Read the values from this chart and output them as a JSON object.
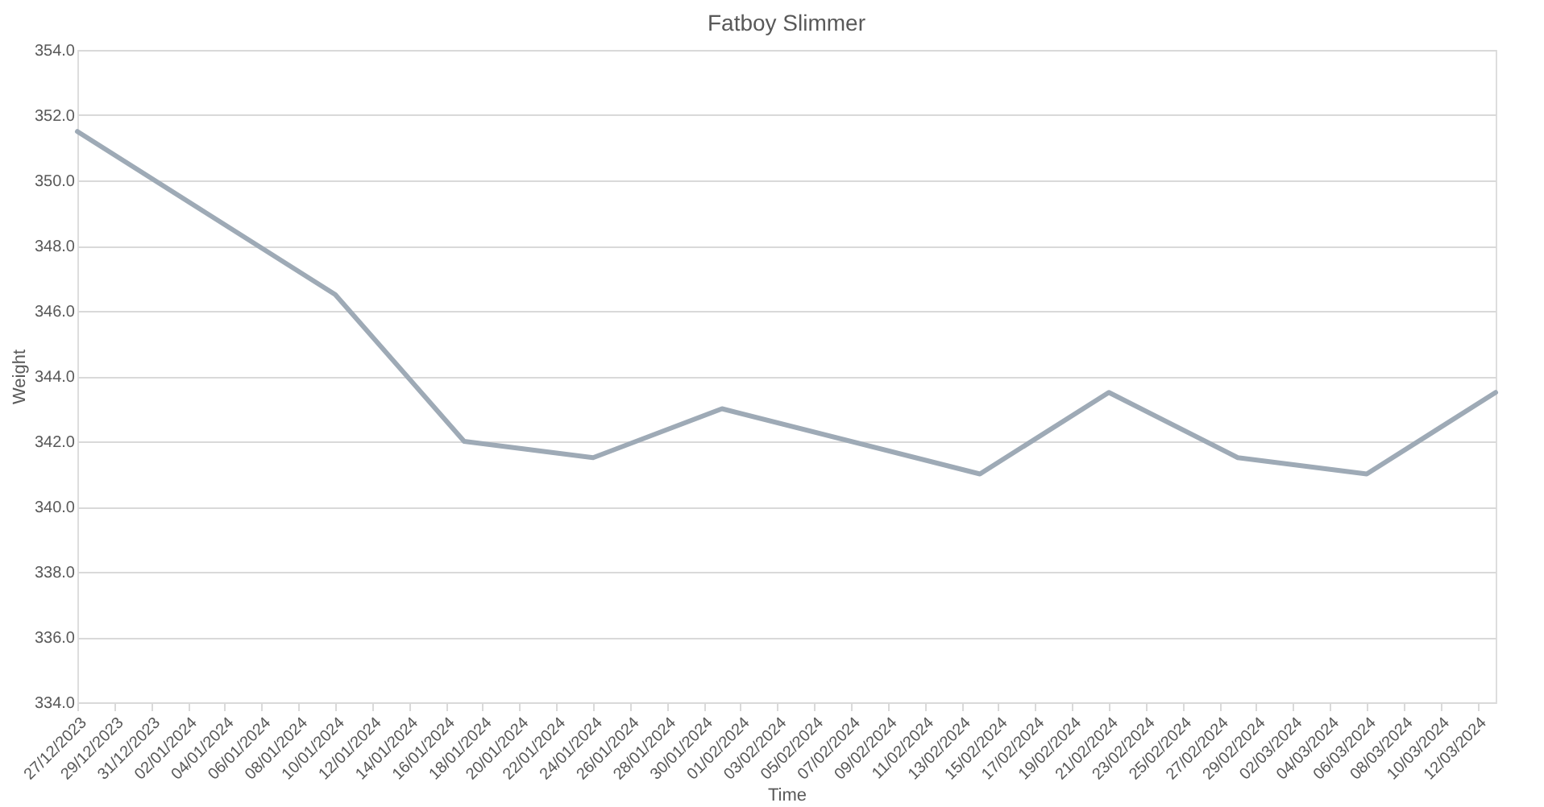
{
  "chart_data": {
    "type": "line",
    "title": "Fatboy Slimmer",
    "xlabel": "Time",
    "ylabel": "Weight",
    "x": [
      "2023-12-27",
      "2024-01-10",
      "2024-01-17",
      "2024-01-24",
      "2024-01-31",
      "2024-02-14",
      "2024-02-21",
      "2024-02-28",
      "2024-03-06",
      "2024-03-13"
    ],
    "series": [
      {
        "color": "#9eaab6",
        "values": [
          351.5,
          346.5,
          342.0,
          341.5,
          343.0,
          341.0,
          343.5,
          341.5,
          341.0,
          343.5
        ]
      }
    ],
    "xlim": [
      "2023-12-27",
      "2024-03-13"
    ],
    "xticks": [
      {
        "value": "2023-12-27",
        "label": "27/12/2023"
      },
      {
        "value": "2023-12-29",
        "label": "29/12/2023"
      },
      {
        "value": "2023-12-31",
        "label": "31/12/2023"
      },
      {
        "value": "2024-01-02",
        "label": "02/01/2024"
      },
      {
        "value": "2024-01-04",
        "label": "04/01/2024"
      },
      {
        "value": "2024-01-06",
        "label": "06/01/2024"
      },
      {
        "value": "2024-01-08",
        "label": "08/01/2024"
      },
      {
        "value": "2024-01-10",
        "label": "10/01/2024"
      },
      {
        "value": "2024-01-12",
        "label": "12/01/2024"
      },
      {
        "value": "2024-01-14",
        "label": "14/01/2024"
      },
      {
        "value": "2024-01-16",
        "label": "16/01/2024"
      },
      {
        "value": "2024-01-18",
        "label": "18/01/2024"
      },
      {
        "value": "2024-01-20",
        "label": "20/01/2024"
      },
      {
        "value": "2024-01-22",
        "label": "22/01/2024"
      },
      {
        "value": "2024-01-24",
        "label": "24/01/2024"
      },
      {
        "value": "2024-01-26",
        "label": "26/01/2024"
      },
      {
        "value": "2024-01-28",
        "label": "28/01/2024"
      },
      {
        "value": "2024-01-30",
        "label": "30/01/2024"
      },
      {
        "value": "2024-02-01",
        "label": "01/02/2024"
      },
      {
        "value": "2024-02-03",
        "label": "03/02/2024"
      },
      {
        "value": "2024-02-05",
        "label": "05/02/2024"
      },
      {
        "value": "2024-02-07",
        "label": "07/02/2024"
      },
      {
        "value": "2024-02-09",
        "label": "09/02/2024"
      },
      {
        "value": "2024-02-11",
        "label": "11/02/2024"
      },
      {
        "value": "2024-02-13",
        "label": "13/02/2024"
      },
      {
        "value": "2024-02-15",
        "label": "15/02/2024"
      },
      {
        "value": "2024-02-17",
        "label": "17/02/2024"
      },
      {
        "value": "2024-02-19",
        "label": "19/02/2024"
      },
      {
        "value": "2024-02-21",
        "label": "21/02/2024"
      },
      {
        "value": "2024-02-23",
        "label": "23/02/2024"
      },
      {
        "value": "2024-02-25",
        "label": "25/02/2024"
      },
      {
        "value": "2024-02-27",
        "label": "27/02/2024"
      },
      {
        "value": "2024-02-29",
        "label": "29/02/2024"
      },
      {
        "value": "2024-03-02",
        "label": "02/03/2024"
      },
      {
        "value": "2024-03-04",
        "label": "04/03/2024"
      },
      {
        "value": "2024-03-06",
        "label": "06/03/2024"
      },
      {
        "value": "2024-03-08",
        "label": "08/03/2024"
      },
      {
        "value": "2024-03-10",
        "label": "10/03/2024"
      },
      {
        "value": "2024-03-12",
        "label": "12/03/2024"
      }
    ],
    "ylim": [
      334,
      354
    ],
    "yticks": [
      {
        "value": 334,
        "label": "334.0"
      },
      {
        "value": 336,
        "label": "336.0"
      },
      {
        "value": 338,
        "label": "338.0"
      },
      {
        "value": 340,
        "label": "340.0"
      },
      {
        "value": 342,
        "label": "342.0"
      },
      {
        "value": 344,
        "label": "344.0"
      },
      {
        "value": 346,
        "label": "346.0"
      },
      {
        "value": 348,
        "label": "348.0"
      },
      {
        "value": 350,
        "label": "350.0"
      },
      {
        "value": 352,
        "label": "352.0"
      },
      {
        "value": 354,
        "label": "354.0"
      }
    ],
    "grid": "y",
    "marker": "none",
    "line_style": "solid"
  }
}
